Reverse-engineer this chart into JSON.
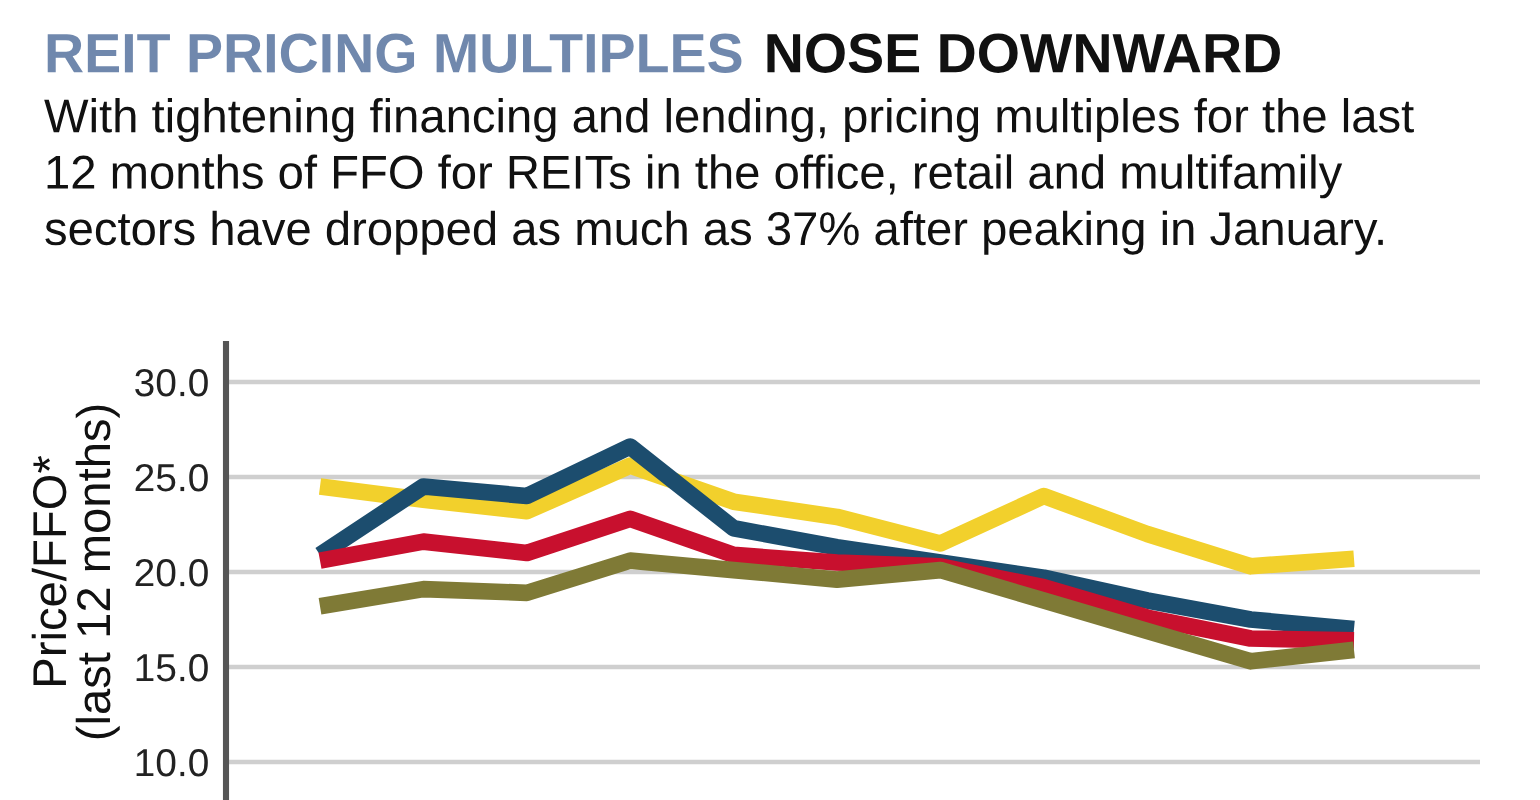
{
  "chart_data": {
    "type": "line",
    "title": "REIT PRICING MULTIPLES NOSE DOWNWARD",
    "subtitle": "With tightening financing and lending, pricing multiples for the last\n12 months of FFO for REITs in the office, retail and multifamily\nsectors have dropped as much as 37% after peaking in January.",
    "ylabel": "Price/FFO*\n(last 12 months)",
    "categories": [
      null,
      null,
      null,
      null,
      null,
      null,
      null,
      null,
      null,
      null,
      null
    ],
    "series": [
      {
        "color": "#f2d02c",
        "values": [
          24.5,
          23.8,
          23.2,
          25.6,
          23.7,
          22.9,
          21.5,
          24.0,
          22.0,
          20.3,
          20.7
        ]
      },
      {
        "color": "#1c4d6e",
        "values": [
          20.9,
          24.5,
          24.0,
          26.6,
          22.3,
          21.3,
          20.5,
          19.7,
          18.5,
          17.5,
          17.0
        ]
      },
      {
        "color": "#c8102e",
        "values": [
          20.6,
          21.6,
          21.0,
          22.8,
          20.9,
          20.5,
          20.3,
          19.2,
          17.6,
          16.5,
          16.4
        ]
      },
      {
        "color": "#7f7a36",
        "values": [
          18.2,
          19.1,
          18.9,
          20.6,
          20.1,
          19.6,
          20.1,
          18.5,
          16.9,
          15.3,
          15.9
        ]
      }
    ],
    "ylim": [
      8.0,
      32.0
    ],
    "yticks": [
      {
        "value": 10,
        "label": "10.0"
      },
      {
        "value": 15,
        "label": "15.0"
      },
      {
        "value": 20,
        "label": "20.0"
      },
      {
        "value": 25,
        "label": "25.0"
      },
      {
        "value": 30,
        "label": "30.0"
      }
    ],
    "grid": "y",
    "tick_labels": "y",
    "line_style": "solid"
  }
}
